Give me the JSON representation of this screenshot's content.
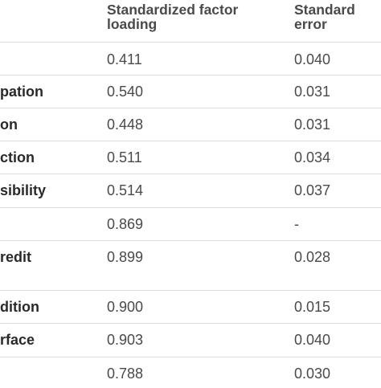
{
  "table": {
    "headers": {
      "col_loading": "Standardized factor\nloading",
      "col_error": "Standard\nerror"
    },
    "rows": [
      {
        "label": "",
        "loading": "0.411",
        "error": "0.040"
      },
      {
        "label": "pation",
        "loading": "0.540",
        "error": "0.031"
      },
      {
        "label": "on",
        "loading": "0.448",
        "error": "0.031"
      },
      {
        "label": "ction",
        "loading": "0.511",
        "error": "0.034"
      },
      {
        "label": "sibility",
        "loading": "0.514",
        "error": "0.037"
      },
      {
        "label": "",
        "loading": "0.869",
        "error": "-"
      },
      {
        "label": "redit",
        "loading": "0.899",
        "error": "0.028"
      },
      {
        "label": "dition",
        "loading": "0.900",
        "error": "0.015"
      },
      {
        "label": "rface",
        "loading": "0.903",
        "error": "0.040"
      },
      {
        "label": "",
        "loading": "0.788",
        "error": "0.030"
      }
    ]
  }
}
